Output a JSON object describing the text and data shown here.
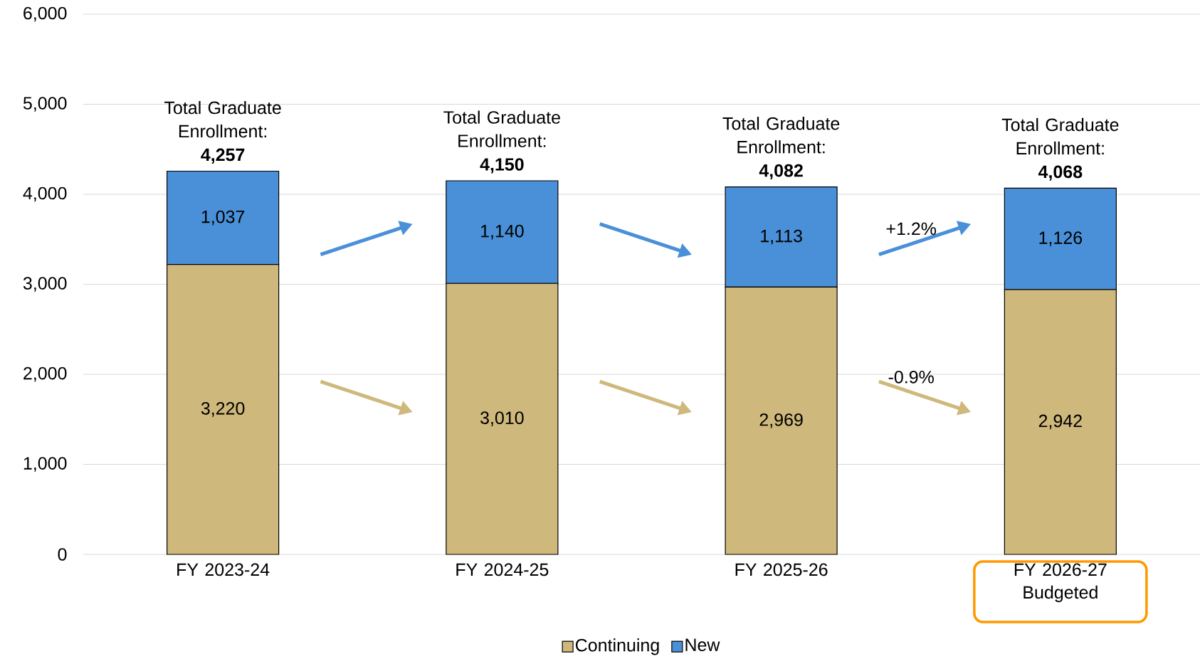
{
  "chart_data": {
    "type": "bar",
    "stacked": true,
    "categories": [
      "FY 2023-24",
      "FY 2024-25",
      "FY 2025-26",
      "FY 2026-27 Budgeted"
    ],
    "series": [
      {
        "name": "Continuing",
        "color": "#cfb87c",
        "values": [
          3220,
          3010,
          2969,
          2942
        ],
        "value_labels": [
          "3,220",
          "3,010",
          "2,969",
          "2,942"
        ]
      },
      {
        "name": "New",
        "color": "#4a90d9",
        "values": [
          1037,
          1140,
          1113,
          1126
        ],
        "value_labels": [
          "1,037",
          "1,140",
          "1,113",
          "1,126"
        ]
      }
    ],
    "ylim": [
      0,
      6000
    ],
    "yticks": [
      0,
      {
        "value": 1000,
        "label": "1,000"
      },
      {
        "value": 2000,
        "label": "2,000"
      },
      {
        "value": 3000,
        "label": "3,000"
      },
      {
        "value": 4000,
        "label": "4,000"
      },
      {
        "value": 5000,
        "label": "5,000"
      },
      {
        "value": 6000,
        "label": "6,000"
      }
    ],
    "grid": "y",
    "legend": "bottom",
    "totals": [
      "Total Graduate Enrollment: **4,257**",
      "Total Graduate Enrollment: **4,150**",
      "Total Graduate Enrollment: **4,082**",
      "Total Graduate Enrollment: **4,068**"
    ],
    "annotations": [
      "+1.2%",
      "-0.9%"
    ]
  }
}
